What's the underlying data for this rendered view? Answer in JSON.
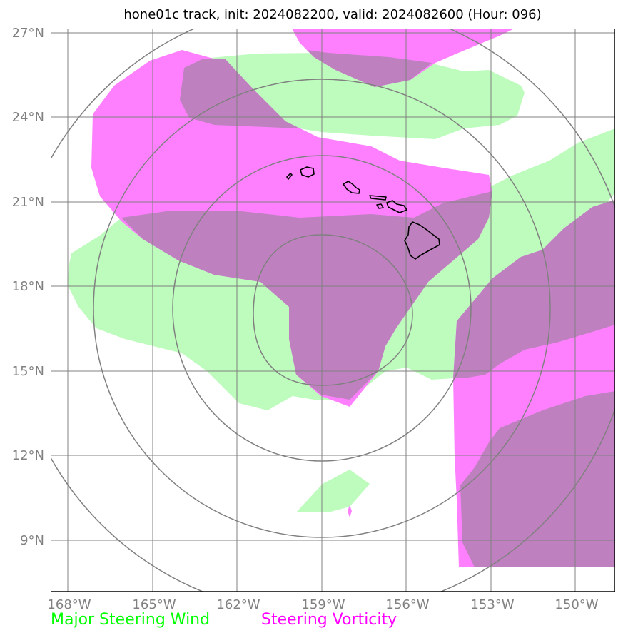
{
  "title": "hone01c track, init: 2024082200, valid: 2024082600 (Hour: 096)",
  "lat_labels": [
    "27°N",
    "24°N",
    "21°N",
    "18°N",
    "15°N",
    "12°N",
    "9°N"
  ],
  "lon_labels": [
    "168°W",
    "165°W",
    "162°W",
    "159°W",
    "156°W",
    "153°W",
    "150°W"
  ],
  "legend": [
    {
      "label": "Major Steering Wind",
      "color": "#00ff00"
    },
    {
      "label": "Steering Vorticity",
      "color": "#ff00ff"
    }
  ],
  "colors": {
    "wind_fill": "#bdfcbd",
    "vorticity_fill": "#ff80ff",
    "overlap_fill": "#bf80bf",
    "grid": "#808080",
    "coastline": "#000000"
  }
}
